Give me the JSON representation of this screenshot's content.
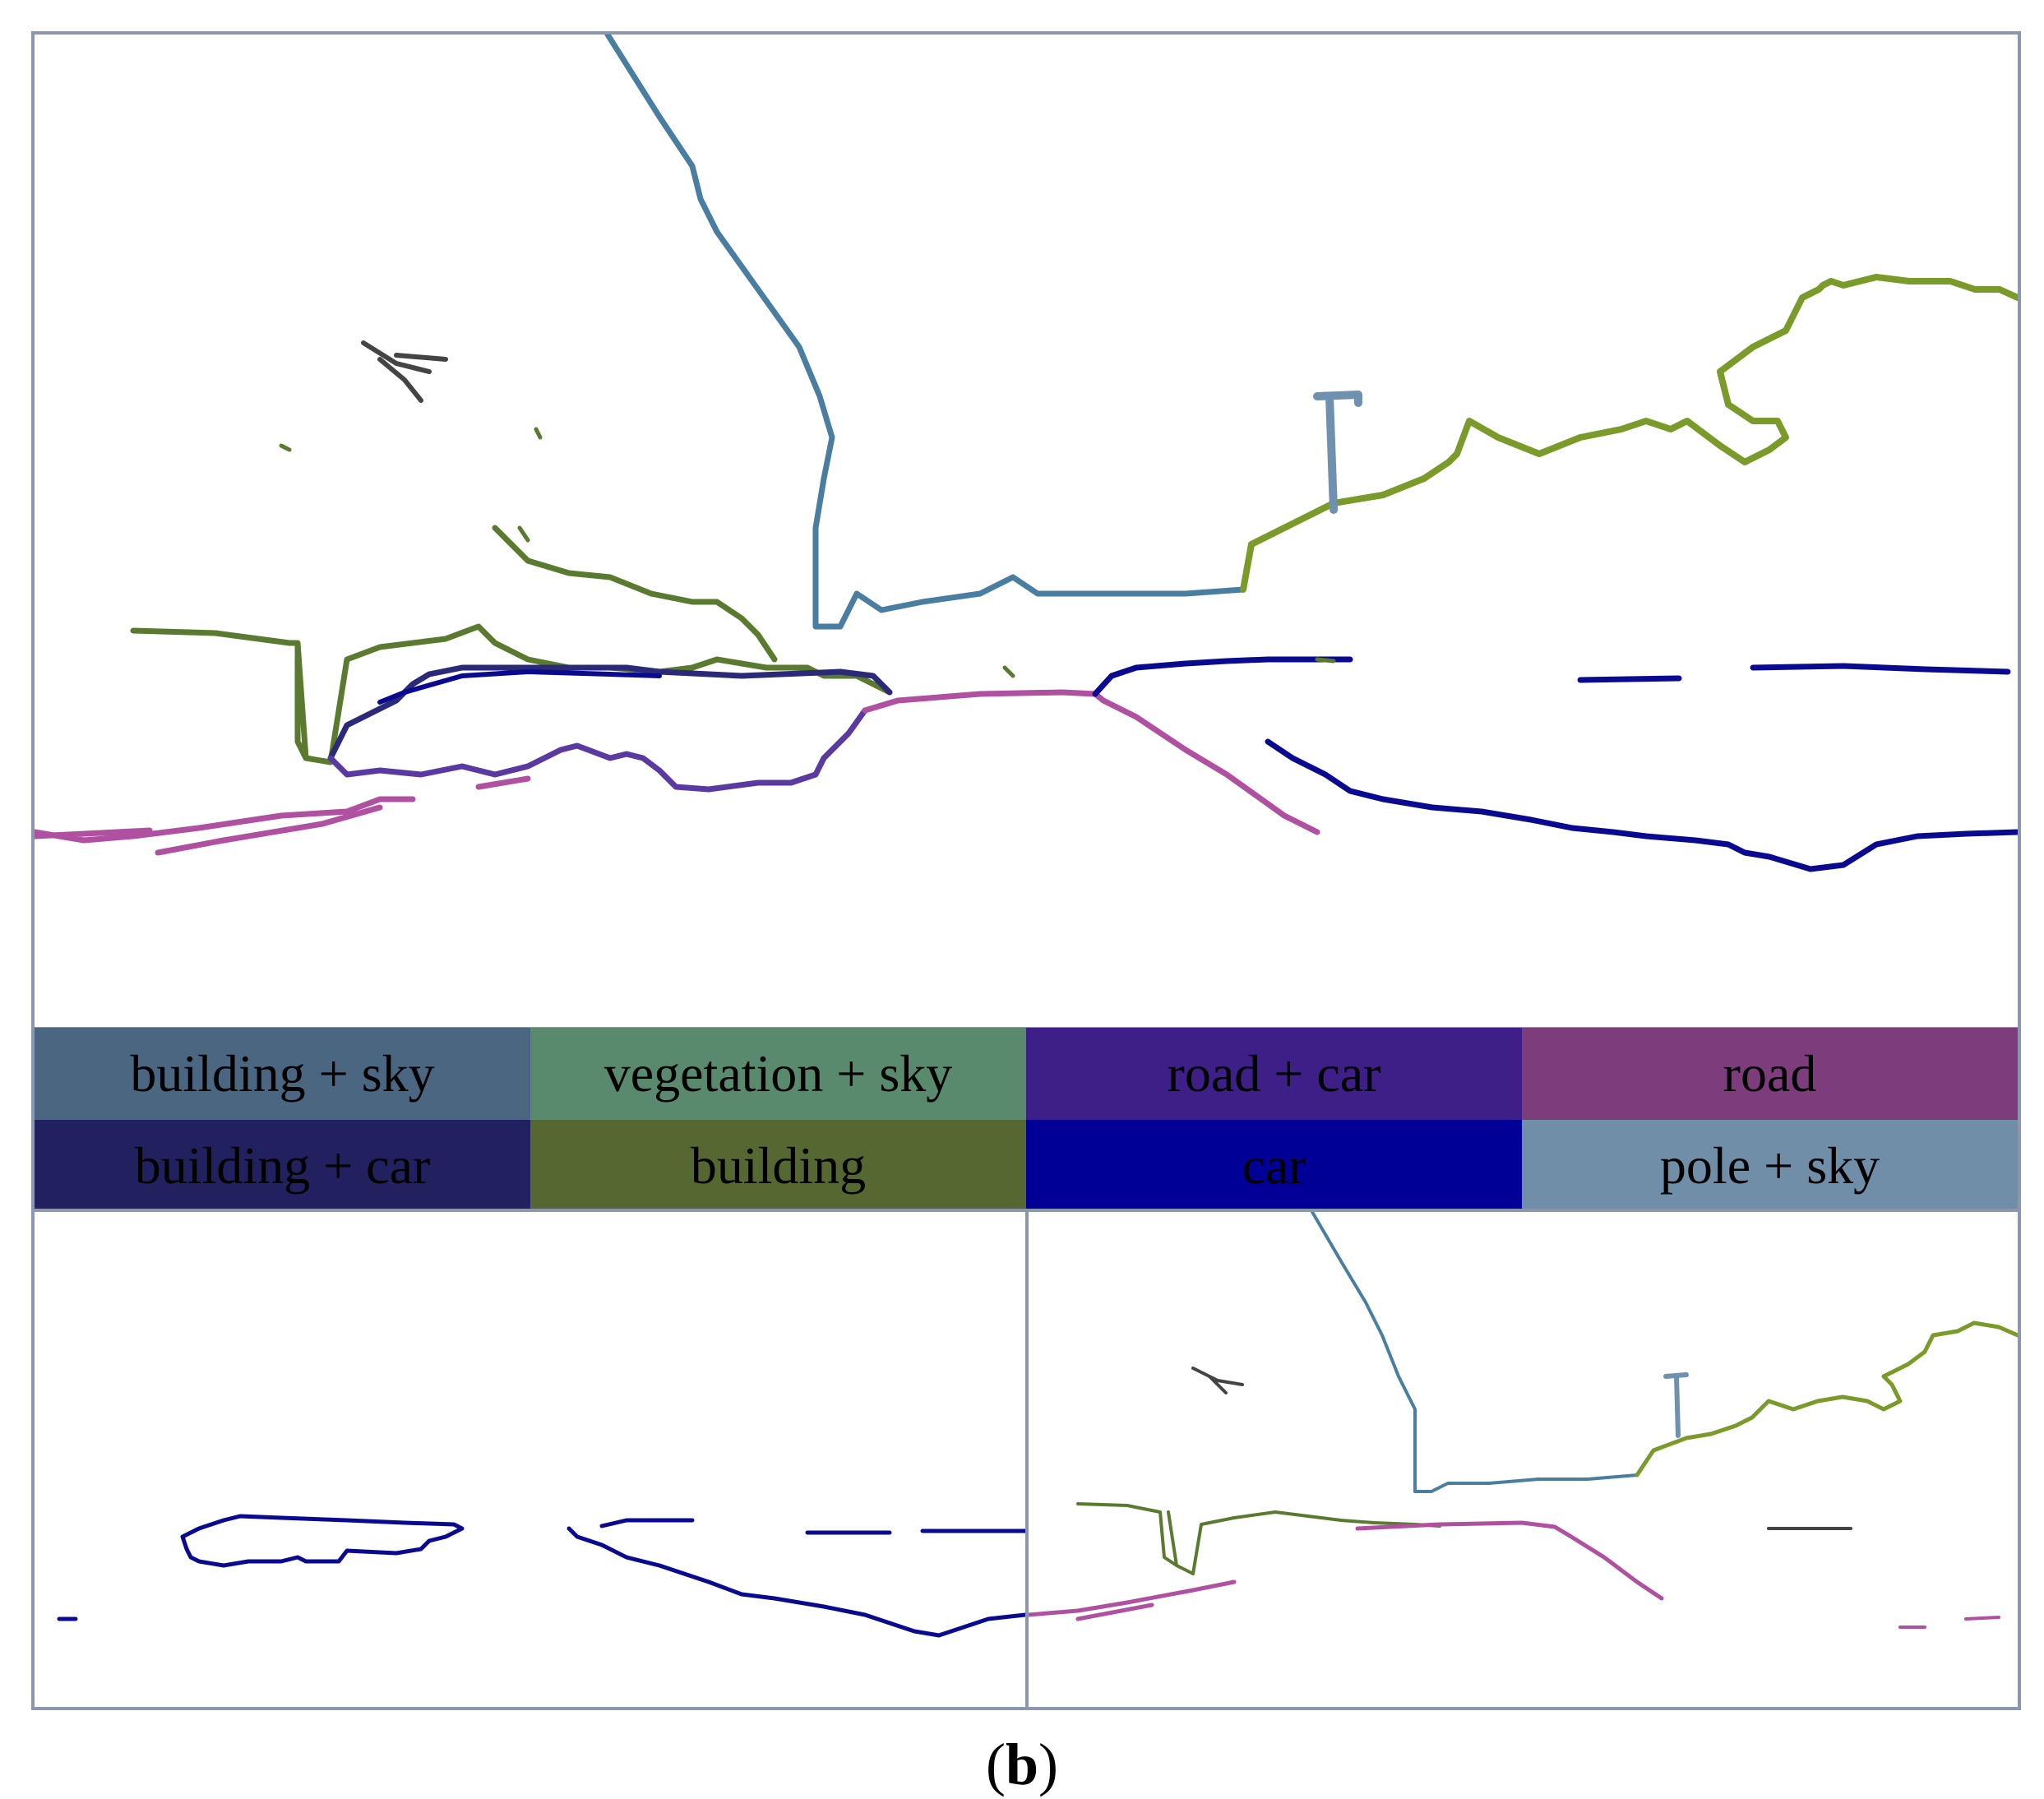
{
  "legend": {
    "items": [
      {
        "label": "building + sky",
        "color": "#4a6680"
      },
      {
        "label": "vegetation + sky",
        "color": "#5a8a6e"
      },
      {
        "label": "road + car",
        "color": "#3d1f87"
      },
      {
        "label": "road",
        "color": "#7d3d7c"
      },
      {
        "label": "building + car",
        "color": "#22215f"
      },
      {
        "label": "building",
        "color": "#556832"
      },
      {
        "label": "car",
        "color": "#000096"
      },
      {
        "label": "pole + sky",
        "color": "#718ea8"
      }
    ]
  },
  "caption": {
    "open": "(",
    "letter": "b",
    "close": ")"
  },
  "colors": {
    "building_sky": "#4a7ea0",
    "vegetation": "#7a9a2a",
    "road_car": "#5a3aa0",
    "road": "#b050a0",
    "building_car": "#2a2a78",
    "building": "#5a7a30",
    "car": "#0a0a90",
    "pole_sky": "#7090b0",
    "dark": "#444444",
    "frame": "#8a97ad"
  }
}
